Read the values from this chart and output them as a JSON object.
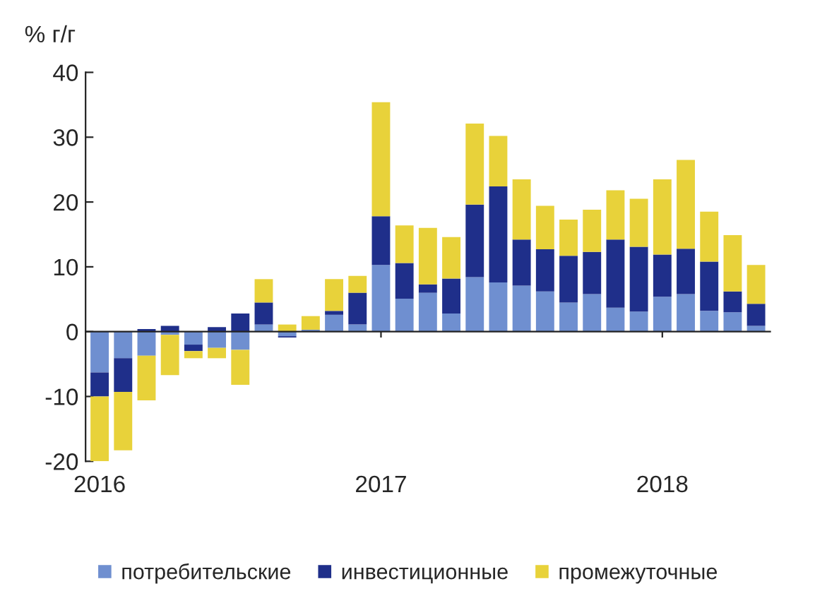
{
  "chart_data": {
    "type": "bar",
    "stacked": true,
    "ylabel": "% г/г",
    "categories": [
      "2016",
      null,
      null,
      null,
      null,
      null,
      null,
      null,
      null,
      null,
      null,
      null,
      "2017",
      null,
      null,
      null,
      null,
      null,
      null,
      null,
      null,
      null,
      null,
      null,
      "2018",
      null,
      null,
      null,
      null
    ],
    "series": [
      {
        "name": "потребительские",
        "color": "#6f8fd0",
        "values": [
          -6.3,
          -4.1,
          -3.7,
          -0.5,
          -2.0,
          -2.5,
          -2.8,
          1.1,
          -0.7,
          0.3,
          2.6,
          1.1,
          10.3,
          5.1,
          6.0,
          2.8,
          8.4,
          7.6,
          7.1,
          6.2,
          4.5,
          5.8,
          3.7,
          3.1,
          5.4,
          5.8,
          3.2,
          3.0,
          0.9
        ]
      },
      {
        "name": "инвестиционные",
        "color": "#1f2f8a",
        "values": [
          -3.7,
          -5.2,
          0.4,
          0.9,
          -1.0,
          0.7,
          2.8,
          3.4,
          -0.2,
          0.0,
          0.6,
          4.9,
          7.5,
          5.5,
          1.3,
          5.4,
          11.2,
          14.8,
          7.1,
          6.5,
          7.2,
          6.5,
          10.5,
          10.0,
          6.5,
          7.0,
          7.6,
          3.2,
          3.4
        ]
      },
      {
        "name": "промежуточные",
        "color": "#e8d23a",
        "values": [
          -10.0,
          -9.0,
          -6.9,
          -6.2,
          -1.1,
          -1.6,
          -5.4,
          3.6,
          1.1,
          2.1,
          4.9,
          2.6,
          17.6,
          5.8,
          8.7,
          6.4,
          12.5,
          7.8,
          9.3,
          6.7,
          5.6,
          6.5,
          7.6,
          7.4,
          11.6,
          13.7,
          7.7,
          8.7,
          6.0
        ]
      }
    ],
    "ylim": [
      -20,
      40
    ],
    "yticks": [
      -20,
      -10,
      0,
      10,
      20,
      30,
      40
    ],
    "legend": "bottom"
  }
}
